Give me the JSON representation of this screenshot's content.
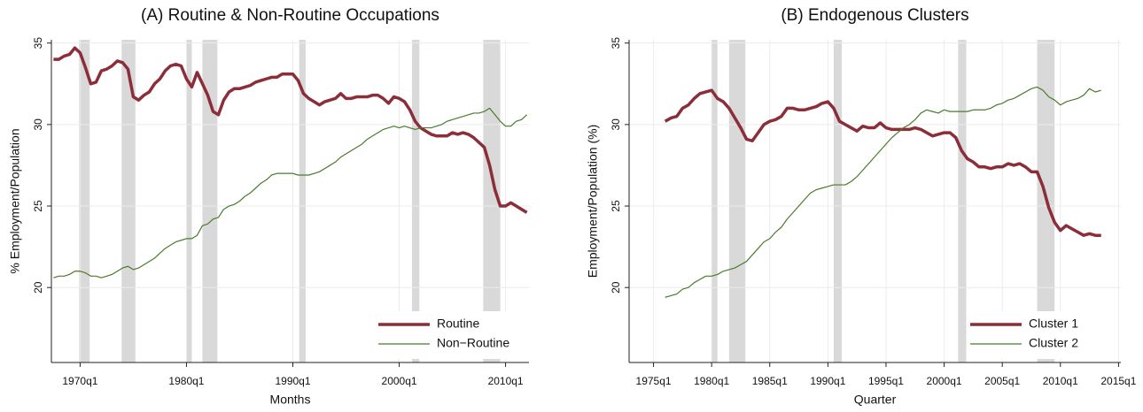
{
  "chart_data": [
    {
      "type": "line",
      "title": "(A) Routine & Non-Routine Occupations",
      "xlabel": "Months",
      "ylabel": "% Employment/Population",
      "x": [
        1967.5,
        1968,
        1968.5,
        1969,
        1969.5,
        1970,
        1970.5,
        1971,
        1971.5,
        1972,
        1972.5,
        1973,
        1973.5,
        1974,
        1974.5,
        1975,
        1975.5,
        1976,
        1976.5,
        1977,
        1977.5,
        1978,
        1978.5,
        1979,
        1979.5,
        1980,
        1980.5,
        1981,
        1981.5,
        1982,
        1982.5,
        1983,
        1983.5,
        1984,
        1984.5,
        1985,
        1985.5,
        1986,
        1986.5,
        1987,
        1987.5,
        1988,
        1988.5,
        1989,
        1989.5,
        1990,
        1990.5,
        1991,
        1991.5,
        1992,
        1992.5,
        1993,
        1993.5,
        1994,
        1994.5,
        1995,
        1995.5,
        1996,
        1996.5,
        1997,
        1997.5,
        1998,
        1998.5,
        1999,
        1999.5,
        2000,
        2000.5,
        2001,
        2001.5,
        2002,
        2002.5,
        2003,
        2003.5,
        2004,
        2004.5,
        2005,
        2005.5,
        2006,
        2006.5,
        2007,
        2007.5,
        2008,
        2008.5,
        2009,
        2009.5,
        2010,
        2010.5,
        2011,
        2011.5,
        2012
      ],
      "series": [
        {
          "name": "Routine",
          "color": "#8c2d3a",
          "line_width": 3.5,
          "values": [
            34.0,
            34.0,
            34.2,
            34.3,
            34.7,
            34.4,
            33.5,
            32.5,
            32.6,
            33.3,
            33.4,
            33.6,
            33.9,
            33.8,
            33.4,
            31.7,
            31.5,
            31.8,
            32.0,
            32.5,
            32.8,
            33.3,
            33.6,
            33.7,
            33.6,
            32.8,
            32.3,
            33.2,
            32.5,
            31.8,
            30.8,
            30.6,
            31.5,
            32.0,
            32.2,
            32.2,
            32.3,
            32.4,
            32.6,
            32.7,
            32.8,
            32.9,
            32.9,
            33.1,
            33.1,
            33.1,
            32.7,
            31.9,
            31.6,
            31.4,
            31.2,
            31.4,
            31.5,
            31.6,
            31.9,
            31.6,
            31.6,
            31.7,
            31.7,
            31.7,
            31.8,
            31.8,
            31.6,
            31.3,
            31.7,
            31.6,
            31.4,
            30.9,
            30.2,
            29.8,
            29.6,
            29.4,
            29.3,
            29.3,
            29.3,
            29.5,
            29.4,
            29.5,
            29.4,
            29.2,
            28.9,
            28.6,
            27.5,
            26.0,
            25.0,
            25.0,
            25.2,
            25.0,
            24.8,
            24.6
          ]
        },
        {
          "name": "Non−Routine",
          "color": "#4b7a2c",
          "line_width": 1.2,
          "values": [
            20.6,
            20.7,
            20.7,
            20.8,
            21.0,
            21.0,
            20.9,
            20.7,
            20.7,
            20.6,
            20.7,
            20.8,
            21.0,
            21.2,
            21.3,
            21.1,
            21.2,
            21.4,
            21.6,
            21.8,
            22.1,
            22.4,
            22.6,
            22.8,
            22.9,
            23.0,
            23.0,
            23.2,
            23.8,
            23.9,
            24.2,
            24.3,
            24.8,
            25.0,
            25.1,
            25.3,
            25.6,
            25.8,
            26.1,
            26.4,
            26.6,
            26.9,
            27.0,
            27.0,
            27.0,
            27.0,
            26.9,
            26.9,
            26.9,
            27.0,
            27.1,
            27.3,
            27.5,
            27.7,
            28.0,
            28.2,
            28.4,
            28.6,
            28.8,
            29.1,
            29.3,
            29.5,
            29.7,
            29.8,
            29.9,
            29.8,
            29.9,
            29.8,
            29.7,
            29.8,
            29.8,
            29.8,
            29.9,
            30.0,
            30.2,
            30.3,
            30.4,
            30.5,
            30.6,
            30.7,
            30.7,
            30.8,
            31.0,
            30.6,
            30.2,
            29.9,
            29.9,
            30.2,
            30.3,
            30.6
          ]
        }
      ],
      "recessions": [
        [
          1969.9,
          1970.9
        ],
        [
          1973.9,
          1975.2
        ],
        [
          1980.0,
          1980.5
        ],
        [
          1981.5,
          1982.9
        ],
        [
          1990.6,
          1991.2
        ],
        [
          2001.2,
          2001.9
        ],
        [
          2007.9,
          2009.5
        ]
      ],
      "recession_color": "#d9d9d9",
      "xlim": [
        1967.3,
        2012.2
      ],
      "ylim": [
        15.4,
        35.2
      ],
      "xticks": [
        {
          "value": 1970,
          "label": "1970q1"
        },
        {
          "value": 1980,
          "label": "1980q1"
        },
        {
          "value": 1990,
          "label": "1990q1"
        },
        {
          "value": 2000,
          "label": "2000q1"
        },
        {
          "value": 2010,
          "label": "2010q1"
        }
      ],
      "yticks": [
        20,
        25,
        30,
        35
      ],
      "grid": true,
      "legend": "lower right"
    },
    {
      "type": "line",
      "title": "(B) Endogenous Clusters",
      "xlabel": "Quarter",
      "ylabel": "Employment/Population (%)",
      "x": [
        1976,
        1976.5,
        1977,
        1977.5,
        1978,
        1978.5,
        1979,
        1979.5,
        1980,
        1980.5,
        1981,
        1981.5,
        1982,
        1982.5,
        1983,
        1983.5,
        1984,
        1984.5,
        1985,
        1985.5,
        1986,
        1986.5,
        1987,
        1987.5,
        1988,
        1988.5,
        1989,
        1989.5,
        1990,
        1990.5,
        1991,
        1991.5,
        1992,
        1992.5,
        1993,
        1993.5,
        1994,
        1994.5,
        1995,
        1995.5,
        1996,
        1996.5,
        1997,
        1997.5,
        1998,
        1998.5,
        1999,
        1999.5,
        2000,
        2000.5,
        2001,
        2001.5,
        2002,
        2002.5,
        2003,
        2003.5,
        2004,
        2004.5,
        2005,
        2005.5,
        2006,
        2006.5,
        2007,
        2007.5,
        2008,
        2008.5,
        2009,
        2009.5,
        2010,
        2010.5,
        2011,
        2011.5,
        2012,
        2012.5,
        2013,
        2013.5
      ],
      "series": [
        {
          "name": "Cluster 1",
          "color": "#8c2d3a",
          "line_width": 3.5,
          "values": [
            30.2,
            30.4,
            30.5,
            31.0,
            31.2,
            31.6,
            31.9,
            32.0,
            32.1,
            31.6,
            31.4,
            31.0,
            30.4,
            29.8,
            29.1,
            29.0,
            29.5,
            30.0,
            30.2,
            30.3,
            30.5,
            31.0,
            31.0,
            30.9,
            30.9,
            31.0,
            31.1,
            31.3,
            31.4,
            31.0,
            30.2,
            30.0,
            29.8,
            29.6,
            29.9,
            29.8,
            29.8,
            30.1,
            29.8,
            29.7,
            29.7,
            29.7,
            29.7,
            29.8,
            29.7,
            29.5,
            29.3,
            29.4,
            29.5,
            29.5,
            29.2,
            28.4,
            27.9,
            27.7,
            27.4,
            27.4,
            27.3,
            27.4,
            27.4,
            27.6,
            27.5,
            27.6,
            27.4,
            27.1,
            27.1,
            26.2,
            24.9,
            24.0,
            23.5,
            23.8,
            23.6,
            23.4,
            23.2,
            23.3,
            23.2,
            23.2
          ]
        },
        {
          "name": "Cluster 2",
          "color": "#4b7a2c",
          "line_width": 1.2,
          "values": [
            19.4,
            19.5,
            19.6,
            19.9,
            20.0,
            20.3,
            20.5,
            20.7,
            20.7,
            20.8,
            21.0,
            21.1,
            21.2,
            21.4,
            21.6,
            22.0,
            22.4,
            22.8,
            23.0,
            23.4,
            23.7,
            24.2,
            24.6,
            25.0,
            25.4,
            25.8,
            26.0,
            26.1,
            26.2,
            26.3,
            26.3,
            26.3,
            26.5,
            26.8,
            27.2,
            27.6,
            28.0,
            28.4,
            28.8,
            29.2,
            29.5,
            29.8,
            30.0,
            30.3,
            30.7,
            30.9,
            30.8,
            30.7,
            30.9,
            30.8,
            30.8,
            30.8,
            30.8,
            30.9,
            30.9,
            30.9,
            31.0,
            31.2,
            31.3,
            31.5,
            31.6,
            31.8,
            32.0,
            32.2,
            32.3,
            32.1,
            31.7,
            31.5,
            31.2,
            31.4,
            31.5,
            31.6,
            31.8,
            32.2,
            32.0,
            32.1
          ]
        }
      ],
      "recessions": [
        [
          1980.0,
          1980.5
        ],
        [
          1981.5,
          1982.9
        ],
        [
          1990.5,
          1991.2
        ],
        [
          2001.2,
          2001.9
        ],
        [
          2008.0,
          2009.5
        ]
      ],
      "recession_color": "#d9d9d9",
      "xlim": [
        1972.9,
        2015.2
      ],
      "ylim": [
        15.4,
        35.2
      ],
      "xticks": [
        {
          "value": 1975,
          "label": "1975q1"
        },
        {
          "value": 1980,
          "label": "1980q1"
        },
        {
          "value": 1985,
          "label": "1985q1"
        },
        {
          "value": 1990,
          "label": "1990q1"
        },
        {
          "value": 1995,
          "label": "1995q1"
        },
        {
          "value": 2000,
          "label": "2000q1"
        },
        {
          "value": 2005,
          "label": "2005q1"
        },
        {
          "value": 2010,
          "label": "2010q1"
        },
        {
          "value": 2015,
          "label": "2015q1"
        }
      ],
      "yticks": [
        20,
        25,
        30,
        35
      ],
      "grid": true,
      "legend": "lower right"
    }
  ]
}
